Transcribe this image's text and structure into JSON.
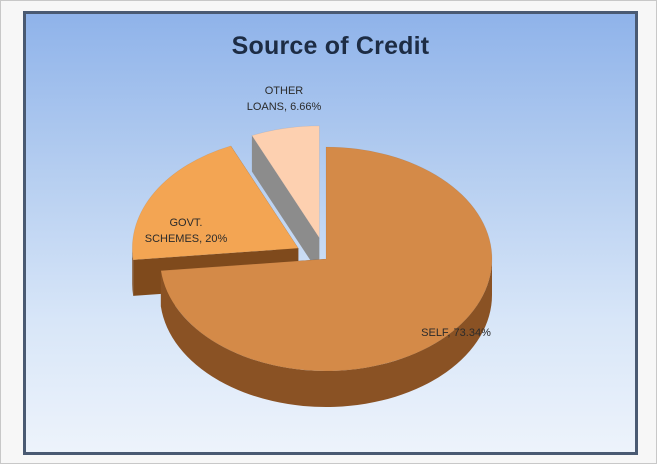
{
  "chart_data": {
    "type": "pie",
    "title": "Source of Credit",
    "slices": [
      {
        "label_lines": [
          "SELF, 73.34%"
        ],
        "name": "SELF",
        "value": 73.34,
        "color": "#d48a48",
        "side": "#8a5224",
        "exploded": false
      },
      {
        "label_lines": [
          "GOVT.",
          "SCHEMES, 20%"
        ],
        "name": "GOVT. SCHEMES",
        "value": 20,
        "color": "#f3a553",
        "side": "#7f4a1c",
        "exploded": true
      },
      {
        "label_lines": [
          "OTHER",
          "LOANS, 6.66%"
        ],
        "name": "OTHER LOANS",
        "value": 6.66,
        "color": "#fdd0b0",
        "side": "#8c8c8c",
        "exploded": true
      }
    ],
    "legend": false,
    "style": "3d-exploded"
  }
}
